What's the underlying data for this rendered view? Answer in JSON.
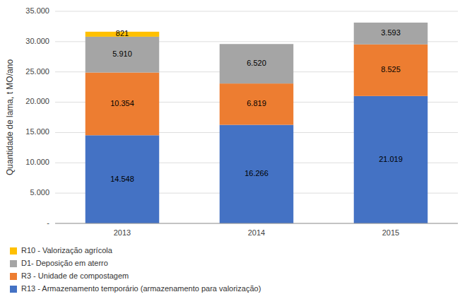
{
  "chart_data": {
    "type": "bar",
    "stacked": true,
    "categories": [
      "2013",
      "2014",
      "2015"
    ],
    "series": [
      {
        "name": "R13 - Armazenamento temporário (armazenamento para valorização)",
        "color": "#4472C4",
        "values": [
          14548,
          16266,
          21019
        ],
        "value_labels": [
          "14.548",
          "16.266",
          "21.019"
        ]
      },
      {
        "name": "R3 - Unidade de compostagem",
        "color": "#ED7D31",
        "values": [
          10354,
          6819,
          8525
        ],
        "value_labels": [
          "10.354",
          "6.819",
          "8.525"
        ]
      },
      {
        "name": "D1- Deposição em aterro",
        "color": "#A5A5A5",
        "values": [
          5910,
          6520,
          3593
        ],
        "value_labels": [
          "5.910",
          "6.520",
          "3.593"
        ]
      },
      {
        "name": "R10 - Valorização agrícola",
        "color": "#FFC000",
        "values": [
          821,
          0,
          0
        ],
        "value_labels": [
          "821",
          null,
          null
        ]
      }
    ],
    "ylabel": "Quantidade de lama, t MO/ano",
    "ylim": [
      0,
      35000
    ],
    "yticks": [
      {
        "value": 0,
        "label": "-"
      },
      {
        "value": 5000,
        "label": "5.000"
      },
      {
        "value": 10000,
        "label": "10.000"
      },
      {
        "value": 15000,
        "label": "15.000"
      },
      {
        "value": 20000,
        "label": "20.000"
      },
      {
        "value": 25000,
        "label": "25.000"
      },
      {
        "value": 30000,
        "label": "30.000"
      },
      {
        "value": 35000,
        "label": "35.000"
      }
    ],
    "grid": true,
    "data_labels": true,
    "legend": "bottom"
  }
}
